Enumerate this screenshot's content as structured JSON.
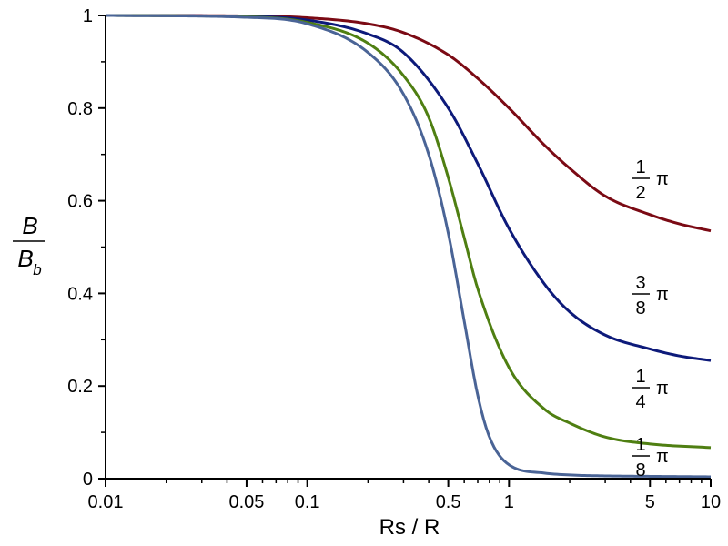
{
  "chart_data": {
    "type": "line",
    "xlabel": "Rs / R",
    "ylabel": {
      "numerator": "B",
      "denominator": "B",
      "denominator_subscript": "b"
    },
    "x_scale": "log",
    "xlim": [
      0.01,
      10
    ],
    "ylim": [
      0,
      1
    ],
    "x_ticks": [
      {
        "value": 0.01,
        "label": "0.01"
      },
      {
        "value": 0.05,
        "label": "0.05"
      },
      {
        "value": 0.1,
        "label": "0.1"
      },
      {
        "value": 0.5,
        "label": "0.5"
      },
      {
        "value": 1,
        "label": "1"
      },
      {
        "value": 5,
        "label": "5"
      },
      {
        "value": 10,
        "label": "10"
      }
    ],
    "y_ticks": [
      {
        "value": 0,
        "label": "0"
      },
      {
        "value": 0.2,
        "label": "0.2"
      },
      {
        "value": 0.4,
        "label": "0.4"
      },
      {
        "value": 0.6,
        "label": "0.6"
      },
      {
        "value": 0.8,
        "label": "0.8"
      },
      {
        "value": 1,
        "label": "1"
      }
    ],
    "grid": false,
    "series": [
      {
        "label": {
          "numerator": "1",
          "denominator": "2",
          "symbol": "π"
        },
        "color": "#7b0a14",
        "x": [
          0.01,
          0.05,
          0.1,
          0.2,
          0.3,
          0.5,
          0.7,
          1,
          1.5,
          2,
          3,
          5,
          7,
          10
        ],
        "y": [
          1.0,
          0.999,
          0.995,
          0.982,
          0.963,
          0.915,
          0.864,
          0.8,
          0.72,
          0.67,
          0.61,
          0.57,
          0.55,
          0.535
        ]
      },
      {
        "label": {
          "numerator": "3",
          "denominator": "8",
          "symbol": "π"
        },
        "color": "#0d1a7a",
        "x": [
          0.01,
          0.05,
          0.1,
          0.2,
          0.3,
          0.5,
          0.7,
          1,
          1.5,
          2,
          3,
          5,
          7,
          10
        ],
        "y": [
          1.0,
          0.998,
          0.99,
          0.96,
          0.92,
          0.8,
          0.68,
          0.54,
          0.42,
          0.36,
          0.31,
          0.28,
          0.265,
          0.255
        ]
      },
      {
        "label": {
          "numerator": "1",
          "denominator": "4",
          "symbol": "π"
        },
        "color": "#4f7f12",
        "x": [
          0.01,
          0.05,
          0.1,
          0.2,
          0.3,
          0.4,
          0.5,
          0.6,
          0.7,
          1,
          1.5,
          2,
          3,
          5,
          10
        ],
        "y": [
          1.0,
          0.997,
          0.985,
          0.94,
          0.87,
          0.78,
          0.65,
          0.52,
          0.41,
          0.24,
          0.15,
          0.12,
          0.09,
          0.075,
          0.067
        ]
      },
      {
        "label": {
          "numerator": "1",
          "denominator": "8",
          "symbol": "π"
        },
        "color": "#4a6496",
        "x": [
          0.01,
          0.05,
          0.1,
          0.2,
          0.3,
          0.4,
          0.5,
          0.6,
          0.7,
          0.8,
          1,
          1.5,
          2,
          3,
          5,
          10
        ],
        "y": [
          1.0,
          0.996,
          0.982,
          0.92,
          0.83,
          0.7,
          0.53,
          0.34,
          0.18,
          0.09,
          0.03,
          0.012,
          0.008,
          0.006,
          0.005,
          0.004
        ]
      }
    ]
  }
}
